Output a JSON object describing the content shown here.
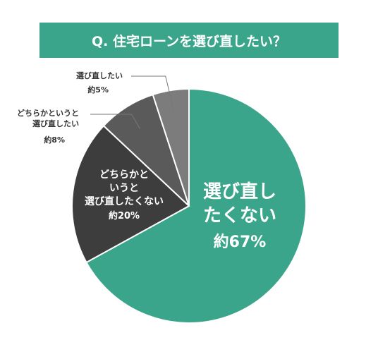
{
  "title": "Q. 住宅ローンを選び直したい？",
  "colors": {
    "accent": "#3aa58a",
    "slice_no": "#3aa58a",
    "slice_rather_no": "#3d3d3d",
    "slice_rather_yes": "#5a5a5a",
    "slice_yes": "#7c7c7c"
  },
  "chart_data": {
    "type": "pie",
    "title": "Q. 住宅ローンを選び直したい？",
    "start": "12 o'clock, clockwise",
    "slices": [
      {
        "label": "選び直したくない",
        "lines": [
          "選び直し",
          "たくない"
        ],
        "value": 67,
        "value_label": "約67%",
        "color": "#3aa58a",
        "label_position": "inside"
      },
      {
        "label": "どちらかというと選び直したくない",
        "lines": [
          "どちらかと",
          "いうと",
          "選び直したくない"
        ],
        "value": 20,
        "value_label": "約20%",
        "color": "#3d3d3d",
        "label_position": "inside"
      },
      {
        "label": "どちらかというと選び直したい",
        "lines": [
          "どちらかというと",
          "選び直したい"
        ],
        "value": 8,
        "value_label": "約8%",
        "color": "#5a5a5a",
        "label_position": "outside"
      },
      {
        "label": "選び直したい",
        "lines": [
          "選び直したい"
        ],
        "value": 5,
        "value_label": "約5%",
        "color": "#7c7c7c",
        "label_position": "outside"
      }
    ]
  }
}
